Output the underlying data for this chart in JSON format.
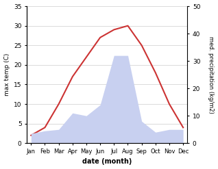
{
  "months": [
    "Jan",
    "Feb",
    "Mar",
    "Apr",
    "May",
    "Jun",
    "Jul",
    "Aug",
    "Sep",
    "Oct",
    "Nov",
    "Dec"
  ],
  "temperature": [
    2,
    4,
    10,
    17,
    22,
    27,
    29,
    30,
    25,
    18,
    10,
    4
  ],
  "precipitation": [
    3.5,
    4.5,
    5,
    11,
    10,
    14,
    32,
    32,
    8,
    4,
    5,
    5
  ],
  "temp_color": "#cc3333",
  "precip_fill_color": "#c8d0f0",
  "temp_ylim": [
    0,
    35
  ],
  "precip_ylim": [
    0,
    50
  ],
  "temp_yticks": [
    0,
    5,
    10,
    15,
    20,
    25,
    30,
    35
  ],
  "precip_yticks": [
    0,
    10,
    20,
    30,
    40,
    50
  ],
  "xlabel": "date (month)",
  "ylabel_left": "max temp (C)",
  "ylabel_right": "med. precipitation (kg/m2)",
  "bg_color": "#ffffff",
  "grid_color": "#cccccc"
}
